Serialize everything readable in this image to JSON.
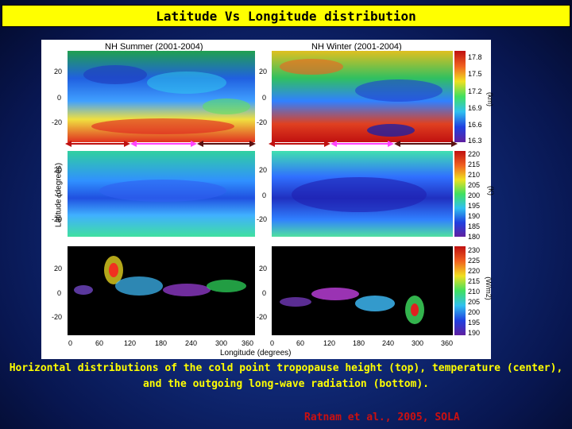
{
  "slide": {
    "title": "Latitude Vs Longitude distribution",
    "caption_line1": "Horizontal distributions of the cold point tropopause height (top), temperature (center),",
    "caption_line2": "and the outgoing long-wave radiation (bottom).",
    "credit": "Ratnam et al., 2005, SOLA"
  },
  "figure": {
    "panel_titles": [
      "NH Summer (2001-2004)",
      "NH Winter (2001-2004)"
    ],
    "ylabel": "Latitude (degrees)",
    "xlabel": "Longitude (degrees)",
    "lat_ticks": [
      "20",
      "0",
      "-20"
    ],
    "lon_ticks_left": [
      "0",
      "60",
      "120",
      "180",
      "240",
      "300",
      "360"
    ],
    "lon_ticks_right": [
      "0",
      "60",
      "120",
      "180",
      "240",
      "300",
      "360"
    ],
    "colorbars": [
      {
        "unit": "(km)",
        "ticks": [
          "17.8",
          "17.5",
          "17.2",
          "16.9",
          "16.6",
          "16.3"
        ]
      },
      {
        "unit": "(K)",
        "ticks": [
          "220",
          "215",
          "210",
          "205",
          "200",
          "195",
          "190",
          "185",
          "180"
        ]
      },
      {
        "unit": "(W/m2)",
        "ticks": [
          "230",
          "225",
          "220",
          "215",
          "210",
          "205",
          "200",
          "195",
          "190"
        ]
      }
    ],
    "arrow_colors": [
      "#c01010",
      "#ff44ff",
      "#5a1010"
    ]
  }
}
